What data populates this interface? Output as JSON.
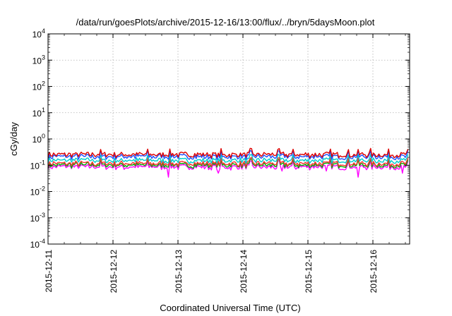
{
  "chart_data": {
    "type": "line",
    "title": "/data/run/goesPlots/archive/2015-12-16/13:00/flux/../bryn/5daysMoon.plot",
    "xlabel": "Coordinated Universal Time (UTC)",
    "ylabel": "cGy/day",
    "y_scale": "log",
    "ylim": [
      0.0001,
      10000
    ],
    "y_ticks": [
      {
        "exp": -4,
        "label_base": "10",
        "label_exp": "-4"
      },
      {
        "exp": -3,
        "label_base": "10",
        "label_exp": "-3"
      },
      {
        "exp": -2,
        "label_base": "10",
        "label_exp": "-2"
      },
      {
        "exp": -1,
        "label_base": "10",
        "label_exp": "-1"
      },
      {
        "exp": 0,
        "label_base": "10",
        "label_exp": "0"
      },
      {
        "exp": 1,
        "label_base": "10",
        "label_exp": "1"
      },
      {
        "exp": 2,
        "label_base": "10",
        "label_exp": "2"
      },
      {
        "exp": 3,
        "label_base": "10",
        "label_exp": "3"
      },
      {
        "exp": 4,
        "label_base": "10",
        "label_exp": "4"
      }
    ],
    "x_ticks": [
      "2015-12-11",
      "2015-12-12",
      "2015-12-13",
      "2015-12-14",
      "2015-12-15",
      "2015-12-16"
    ],
    "xlim": [
      "2015-12-11",
      "2015-12-16 13:00"
    ],
    "grid": true,
    "series": [
      {
        "color": "#ff00ff",
        "level": 0.085,
        "low_spikes": [
          [
            1.85,
            0.035
          ],
          [
            2.62,
            0.05
          ],
          [
            3.6,
            0.06
          ],
          [
            4.28,
            0.06
          ],
          [
            4.78,
            0.035
          ],
          [
            5.45,
            0.05
          ]
        ]
      },
      {
        "color": "#00aa00",
        "level": 0.1
      },
      {
        "color": "#ff3030",
        "level": 0.115
      },
      {
        "color": "#00cccc",
        "level": 0.15
      },
      {
        "color": "#1f4fff",
        "level": 0.21
      },
      {
        "color": "#dd0000",
        "level": 0.25
      }
    ]
  }
}
